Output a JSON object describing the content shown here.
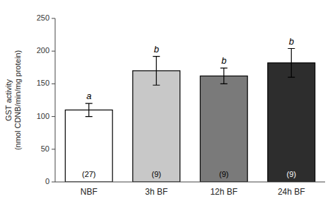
{
  "chart_data": {
    "type": "bar",
    "categories": [
      "NBF",
      "3h BF",
      "12h BF",
      "24h BF"
    ],
    "values": [
      110,
      170,
      162,
      182
    ],
    "errors": [
      10,
      22,
      12,
      22
    ],
    "colors": [
      "#ffffff",
      "#c8c8c8",
      "#7a7a7a",
      "#2d2d2d"
    ],
    "sample_labels": [
      "(27)",
      "(9)",
      "(9)",
      "(9)"
    ],
    "sig_labels": [
      "a",
      "b",
      "b",
      "b"
    ],
    "ylabel": "GST activity\n(nmol CDNB/min/mg protein)",
    "ylim": [
      0,
      250
    ],
    "yticks": [
      0,
      50,
      100,
      150,
      200,
      250
    ],
    "grid": false
  }
}
